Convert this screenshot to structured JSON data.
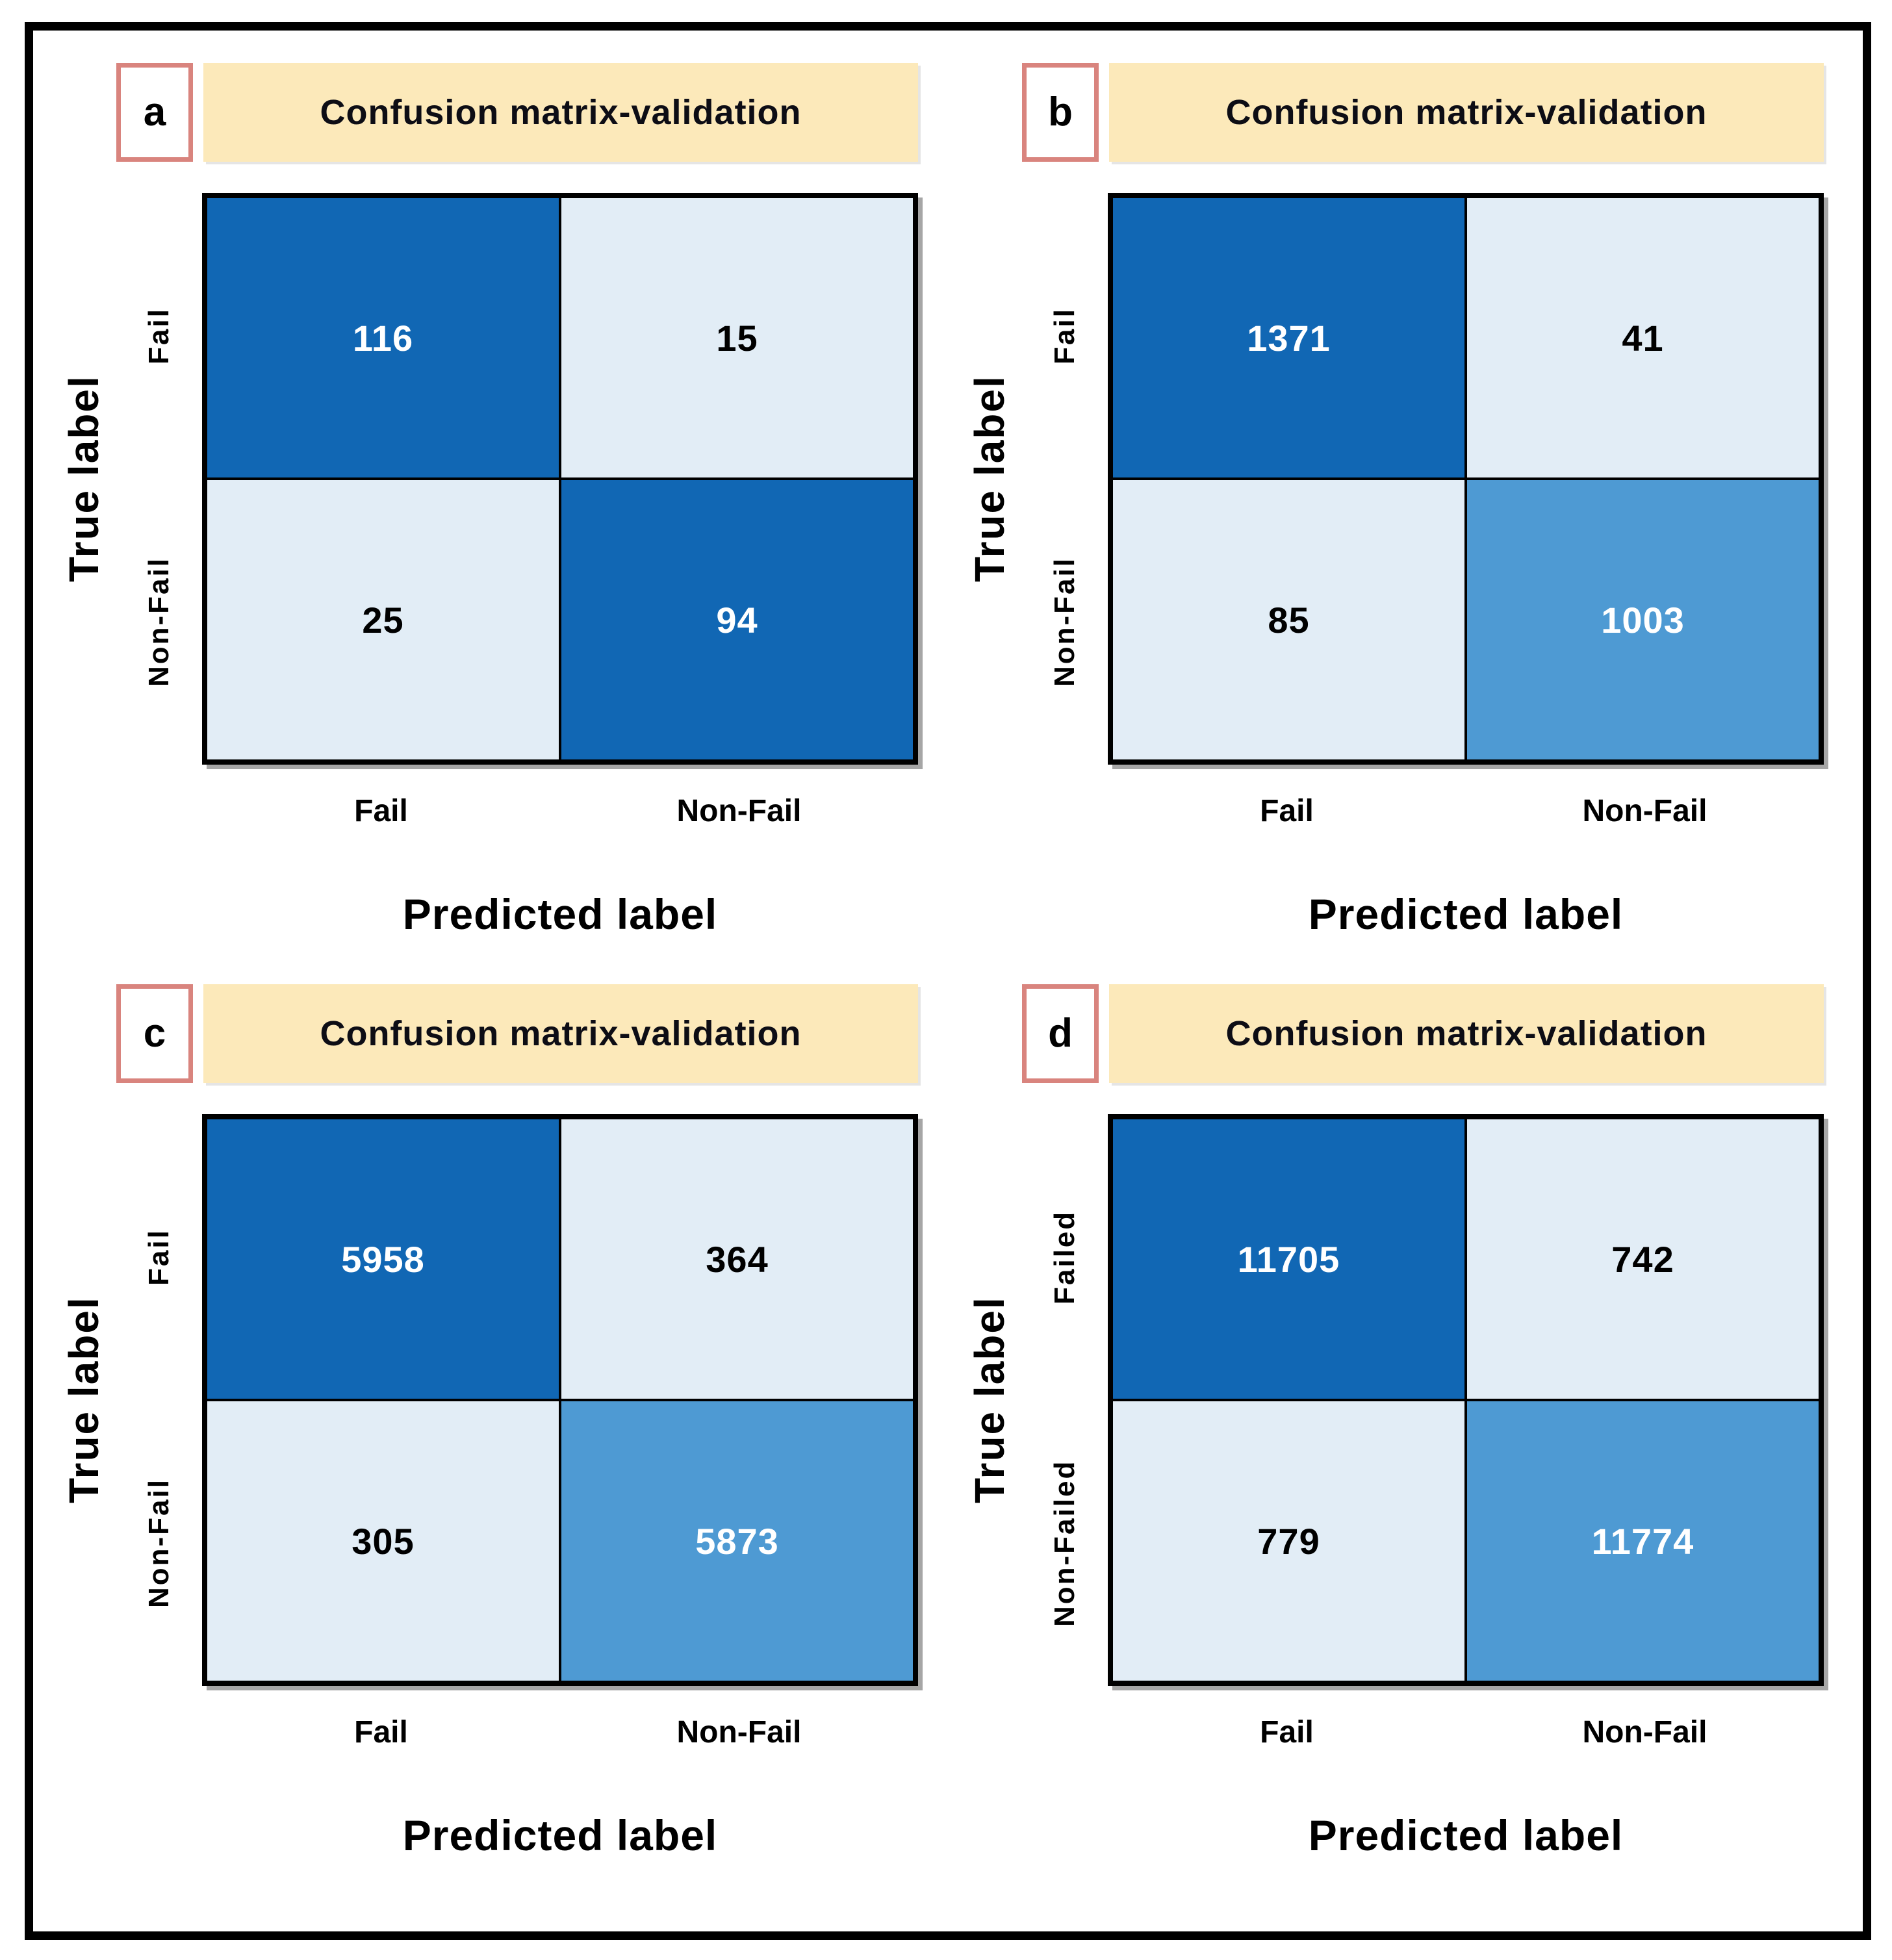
{
  "figure": {
    "type": "confusion-matrix-figure",
    "panel_count": 4
  },
  "axis": {
    "y_label": "True label",
    "x_label": "Predicted label"
  },
  "colors": {
    "cell_dark_blue": "#1167b4",
    "cell_medium_blue": "#4e9ad3",
    "cell_light_blue": "#e2edf6",
    "title_background": "#fce9ba",
    "letter_box_border": "#d9847e",
    "frame_border": "#000000",
    "number_on_dark": "#ffffff",
    "number_on_light": "#000000"
  },
  "panels": [
    {
      "letter": "a",
      "title": "Confusion matrix-validation",
      "row_labels": [
        "Fail",
        "Non-Fail"
      ],
      "col_labels": [
        "Fail",
        "Non-Fail"
      ],
      "cells": [
        {
          "value": "116",
          "bg": "dark"
        },
        {
          "value": "15",
          "bg": "light"
        },
        {
          "value": "25",
          "bg": "light"
        },
        {
          "value": "94",
          "bg": "dark"
        }
      ]
    },
    {
      "letter": "b",
      "title": "Confusion matrix-validation",
      "row_labels": [
        "Fail",
        "Non-Fail"
      ],
      "col_labels": [
        "Fail",
        "Non-Fail"
      ],
      "cells": [
        {
          "value": "1371",
          "bg": "dark"
        },
        {
          "value": "41",
          "bg": "light"
        },
        {
          "value": "85",
          "bg": "light"
        },
        {
          "value": "1003",
          "bg": "mid"
        }
      ]
    },
    {
      "letter": "c",
      "title": "Confusion matrix-validation",
      "row_labels": [
        "Fail",
        "Non-Fail"
      ],
      "col_labels": [
        "Fail",
        "Non-Fail"
      ],
      "cells": [
        {
          "value": "5958",
          "bg": "dark"
        },
        {
          "value": "364",
          "bg": "light"
        },
        {
          "value": "305",
          "bg": "light"
        },
        {
          "value": "5873",
          "bg": "mid"
        }
      ]
    },
    {
      "letter": "d",
      "title": "Confusion matrix-validation",
      "row_labels": [
        "Failed",
        "Non-Failed"
      ],
      "col_labels": [
        "Fail",
        "Non-Fail"
      ],
      "cells": [
        {
          "value": "11705",
          "bg": "dark"
        },
        {
          "value": "742",
          "bg": "light"
        },
        {
          "value": "779",
          "bg": "light"
        },
        {
          "value": "11774",
          "bg": "mid"
        }
      ]
    }
  ],
  "chart_data": [
    {
      "type": "heatmap",
      "panel": "a",
      "title": "Confusion matrix-validation",
      "xlabel": "Predicted label",
      "ylabel": "True label",
      "x_categories": [
        "Fail",
        "Non-Fail"
      ],
      "y_categories": [
        "Fail",
        "Non-Fail"
      ],
      "values": [
        [
          116,
          15
        ],
        [
          25,
          94
        ]
      ]
    },
    {
      "type": "heatmap",
      "panel": "b",
      "title": "Confusion matrix-validation",
      "xlabel": "Predicted label",
      "ylabel": "True label",
      "x_categories": [
        "Fail",
        "Non-Fail"
      ],
      "y_categories": [
        "Fail",
        "Non-Fail"
      ],
      "values": [
        [
          1371,
          41
        ],
        [
          85,
          1003
        ]
      ]
    },
    {
      "type": "heatmap",
      "panel": "c",
      "title": "Confusion matrix-validation",
      "xlabel": "Predicted label",
      "ylabel": "True label",
      "x_categories": [
        "Fail",
        "Non-Fail"
      ],
      "y_categories": [
        "Fail",
        "Non-Fail"
      ],
      "values": [
        [
          5958,
          364
        ],
        [
          305,
          5873
        ]
      ]
    },
    {
      "type": "heatmap",
      "panel": "d",
      "title": "Confusion matrix-validation",
      "xlabel": "Predicted label",
      "ylabel": "True label",
      "x_categories": [
        "Fail",
        "Non-Fail"
      ],
      "y_categories": [
        "Failed",
        "Non-Failed"
      ],
      "values": [
        [
          11705,
          742
        ],
        [
          779,
          11774
        ]
      ]
    }
  ]
}
